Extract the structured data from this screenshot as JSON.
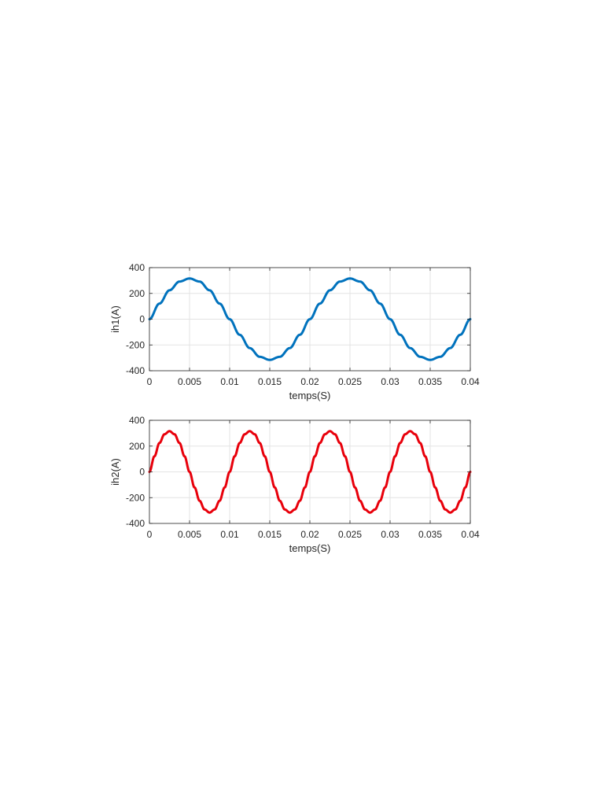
{
  "chart_data": [
    {
      "type": "line",
      "xlabel": "temps(S)",
      "ylabel": "ih1(A)",
      "xlim": [
        0,
        0.04
      ],
      "ylim": [
        -400,
        400
      ],
      "grid": true,
      "x_ticks": [
        0,
        0.005,
        0.01,
        0.015,
        0.02,
        0.025,
        0.03,
        0.035,
        0.04
      ],
      "x_tick_labels": [
        "0",
        "0.005",
        "0.01",
        "0.015",
        "0.02",
        "0.025",
        "0.03",
        "0.035",
        "0.04"
      ],
      "y_ticks": [
        400,
        200,
        0,
        -200,
        -400
      ],
      "y_tick_labels": [
        "400",
        "200",
        "0",
        "-200",
        "-400"
      ],
      "series": [
        {
          "color": "#0072BD",
          "x": [
            0,
            0.00125,
            0.0025,
            0.00375,
            0.005,
            0.00625,
            0.0075,
            0.00875,
            0.01,
            0.01125,
            0.0125,
            0.01375,
            0.015,
            0.01625,
            0.0175,
            0.01875,
            0.02,
            0.02125,
            0.0225,
            0.02375,
            0.025,
            0.02625,
            0.0275,
            0.02875,
            0.03,
            0.03125,
            0.0325,
            0.03375,
            0.035,
            0.03625,
            0.0375,
            0.03875,
            0.04
          ],
          "y": [
            0,
            121,
            224,
            292,
            316,
            292,
            224,
            121,
            0,
            -121,
            -224,
            -292,
            -316,
            -292,
            -224,
            -121,
            0,
            121,
            224,
            292,
            316,
            292,
            224,
            121,
            0,
            -121,
            -224,
            -292,
            -316,
            -292,
            -224,
            -121,
            0
          ]
        }
      ]
    },
    {
      "type": "line",
      "xlabel": "temps(S)",
      "ylabel": "ih2(A)",
      "xlim": [
        0,
        0.04
      ],
      "ylim": [
        -400,
        400
      ],
      "grid": true,
      "x_ticks": [
        0,
        0.005,
        0.01,
        0.015,
        0.02,
        0.025,
        0.03,
        0.035,
        0.04
      ],
      "x_tick_labels": [
        "0",
        "0.005",
        "0.01",
        "0.015",
        "0.02",
        "0.025",
        "0.03",
        "0.035",
        "0.04"
      ],
      "y_ticks": [
        400,
        200,
        0,
        -200,
        -400
      ],
      "y_tick_labels": [
        "400",
        "200",
        "0",
        "-200",
        "-400"
      ],
      "series": [
        {
          "color": "#E8000B",
          "x": [
            0,
            0.000625,
            0.00125,
            0.001875,
            0.0025,
            0.003125,
            0.00375,
            0.004375,
            0.005,
            0.005625,
            0.00625,
            0.006875,
            0.0075,
            0.008125,
            0.00875,
            0.009375,
            0.01,
            0.010625,
            0.01125,
            0.011875,
            0.0125,
            0.013125,
            0.01375,
            0.014375,
            0.015,
            0.015625,
            0.01625,
            0.016875,
            0.0175,
            0.018125,
            0.01875,
            0.019375,
            0.02,
            0.020625,
            0.02125,
            0.021875,
            0.0225,
            0.023125,
            0.02375,
            0.024375,
            0.025,
            0.025625,
            0.02625,
            0.026875,
            0.0275,
            0.028125,
            0.02875,
            0.029375,
            0.03,
            0.030625,
            0.03125,
            0.031875,
            0.0325,
            0.033125,
            0.03375,
            0.034375,
            0.035,
            0.035625,
            0.03625,
            0.036875,
            0.0375,
            0.038125,
            0.03875,
            0.039375,
            0.04
          ],
          "y": [
            0,
            121,
            224,
            292,
            316,
            292,
            224,
            121,
            0,
            -121,
            -224,
            -292,
            -316,
            -292,
            -224,
            -121,
            0,
            121,
            224,
            292,
            316,
            292,
            224,
            121,
            0,
            -121,
            -224,
            -292,
            -316,
            -292,
            -224,
            -121,
            0,
            121,
            224,
            292,
            316,
            292,
            224,
            121,
            0,
            -121,
            -224,
            -292,
            -316,
            -292,
            -224,
            -121,
            0,
            121,
            224,
            292,
            316,
            292,
            224,
            121,
            0,
            -121,
            -224,
            -292,
            -316,
            -292,
            -224,
            -121,
            0
          ]
        }
      ]
    }
  ]
}
